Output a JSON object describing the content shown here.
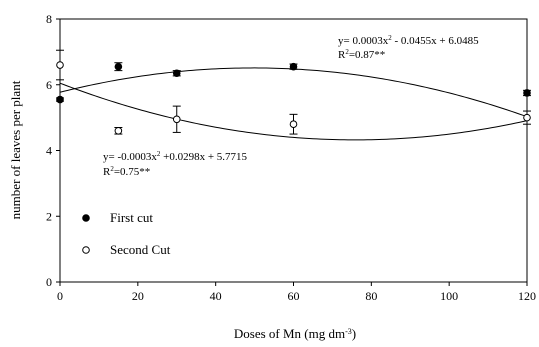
{
  "chart_data": {
    "type": "scatter",
    "title": "",
    "xlabel": "Doses of  Mn (mg dm",
    "xlabel_sup": "-3",
    "xlabel_end": ")",
    "ylabel": "number of leaves per plant",
    "xlim": [
      0,
      120
    ],
    "ylim": [
      0,
      8
    ],
    "xticks": [
      0,
      20,
      40,
      60,
      80,
      100,
      120
    ],
    "yticks": [
      0,
      2,
      4,
      6,
      8
    ],
    "grid": false,
    "legend_position": "lower-left",
    "series": [
      {
        "name": "First cut",
        "marker": "filled-circle",
        "x": [
          0,
          15,
          30,
          60,
          120
        ],
        "y": [
          5.55,
          6.55,
          6.35,
          6.55,
          5.75
        ],
        "err": [
          0.05,
          0.12,
          0.08,
          0.08,
          0.08
        ],
        "fit": {
          "a": 0.0003,
          "b": -0.0455,
          "c": 6.0485
        },
        "equation": {
          "prefix": "y= 0.0003x",
          "sup": "2",
          "suffix": " - 0.0455x + 6.0485",
          "r2_prefix": "R",
          "r2_sup": "2",
          "r2_suffix": "=0.87**"
        }
      },
      {
        "name": "Second Cut",
        "marker": "open-circle",
        "x": [
          0,
          15,
          30,
          60,
          120
        ],
        "y": [
          6.6,
          4.6,
          4.95,
          4.8,
          5.0
        ],
        "err": [
          0.45,
          0.1,
          0.4,
          0.3,
          0.2
        ],
        "fit": {
          "a": -0.0003,
          "b": 0.0298,
          "c": 5.7715
        },
        "equation": {
          "prefix": "y= -0.0003x",
          "sup": "2",
          "suffix": " +0.0298x + 5.7715",
          "r2_prefix": "R",
          "r2_sup": "2",
          "r2_suffix": "=0.75**"
        }
      }
    ]
  }
}
